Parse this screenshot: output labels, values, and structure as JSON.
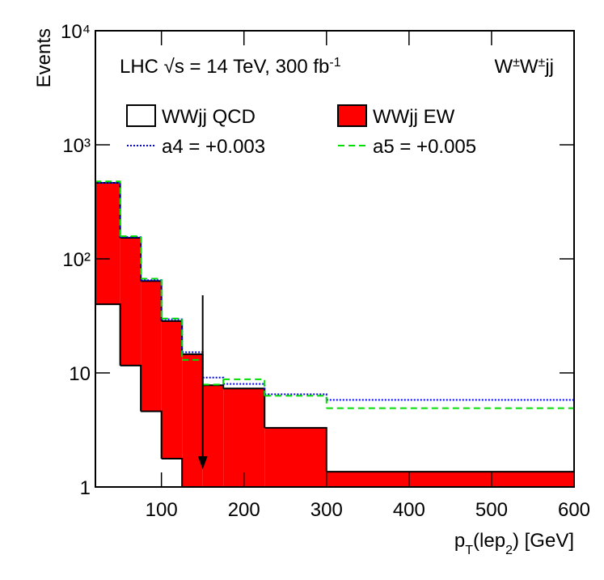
{
  "chart_data": {
    "type": "histogram",
    "annotation": [
      {
        "text": "LHC √s = 14 TeV, 300 fb"
      },
      {
        "text": "-1",
        "sup": true
      }
    ],
    "process": [
      {
        "text": "W"
      },
      {
        "text": "±",
        "sup": true
      },
      {
        "text": "W"
      },
      {
        "text": "±",
        "sup": true
      },
      {
        "text": "jj"
      }
    ],
    "y_label": "Events",
    "x_label": [
      {
        "text": "p"
      },
      {
        "text": "T",
        "sub": true
      },
      {
        "text": "(lep"
      },
      {
        "text": "2",
        "sub": true
      },
      {
        "text": ") [GeV]"
      }
    ],
    "bins": [
      20,
      50,
      75,
      100,
      125,
      150,
      175,
      225,
      300,
      600
    ],
    "series": [
      {
        "name": "WWjj QCD",
        "color": "#ffffff",
        "style": "fill",
        "values": [
          40,
          11.6,
          4.6,
          1.77,
          0,
          0,
          0,
          0,
          0
        ]
      },
      {
        "name": "WWjj EW",
        "color": "#ff0000",
        "style": "fill",
        "stack": true,
        "values": [
          424,
          141.4,
          59.4,
          26.7,
          14.6,
          7.8,
          7.3,
          3.3,
          1.36
        ]
      },
      {
        "name": "a4 = +0.003",
        "color": "#0000ff",
        "style": "dotted",
        "values": [
          464,
          155,
          65,
          29.5,
          15.2,
          9.1,
          8.0,
          6.5,
          5.8
        ]
      },
      {
        "name": "a5 = +0.005",
        "color": "#00dd00",
        "style": "dashed",
        "values": [
          478,
          158,
          67,
          30,
          13,
          7.9,
          8.8,
          6.3,
          4.9
        ]
      }
    ],
    "arrow_x": 150,
    "log_y": true,
    "xlim": [
      20,
      600
    ],
    "xticks": [
      100,
      200,
      300,
      400,
      500,
      600
    ],
    "ylim": [
      1,
      10000
    ],
    "yticks": [
      1,
      10,
      {
        "value": 100,
        "label": "10²"
      },
      {
        "value": 1000,
        "label": "10³"
      },
      {
        "value": 10000,
        "label": "10⁴"
      }
    ]
  }
}
